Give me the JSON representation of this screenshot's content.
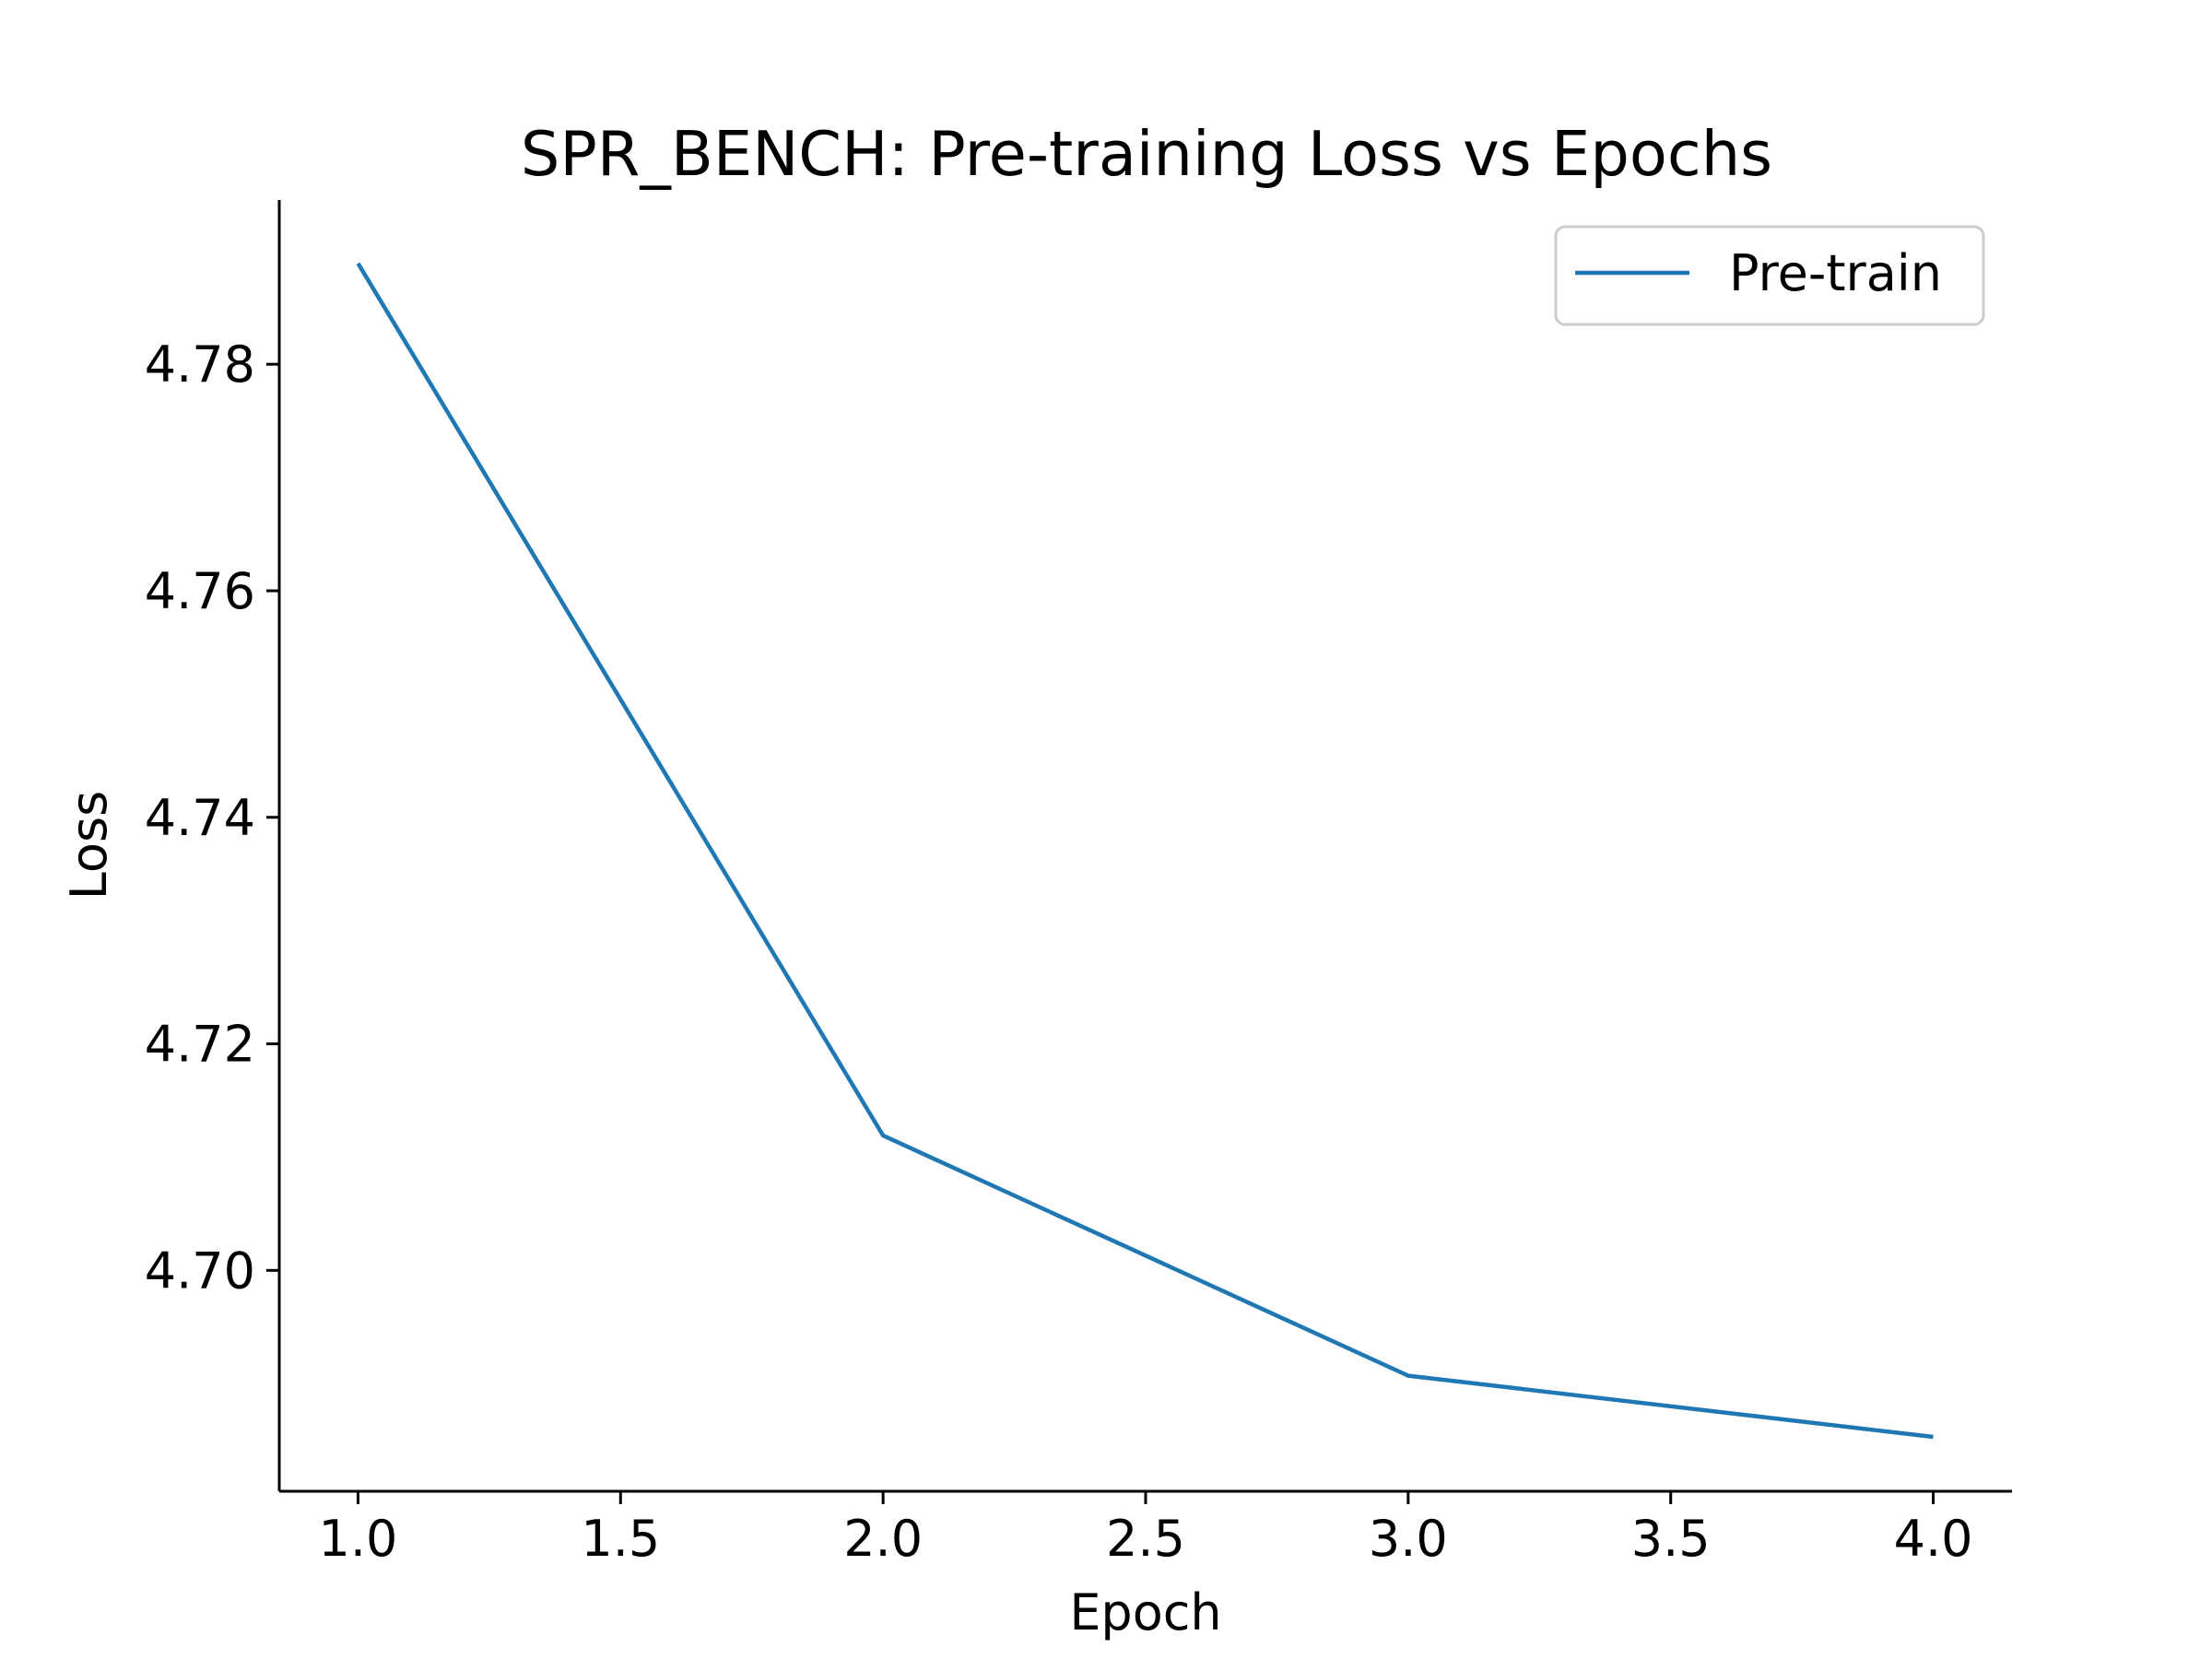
{
  "chart_data": {
    "type": "line",
    "title": "SPR_BENCH: Pre-training Loss vs Epochs",
    "xlabel": "Epoch",
    "ylabel": "Loss",
    "xlim": [
      0.85,
      4.15
    ],
    "ylim": [
      4.6805,
      4.7945
    ],
    "xticks": [
      1.0,
      1.5,
      2.0,
      2.5,
      3.0,
      3.5,
      4.0
    ],
    "xtick_labels": [
      "1.0",
      "1.5",
      "2.0",
      "2.5",
      "3.0",
      "3.5",
      "4.0"
    ],
    "yticks": [
      4.7,
      4.72,
      4.74,
      4.76,
      4.78
    ],
    "ytick_labels": [
      "4.70",
      "4.72",
      "4.74",
      "4.76",
      "4.78"
    ],
    "grid": false,
    "legend_position": "top-right",
    "series": [
      {
        "name": "Pre-train",
        "color": "#1f77b4",
        "x": [
          1,
          2,
          3,
          4
        ],
        "y": [
          4.7889,
          4.7119,
          4.6907,
          4.6853
        ]
      }
    ]
  }
}
